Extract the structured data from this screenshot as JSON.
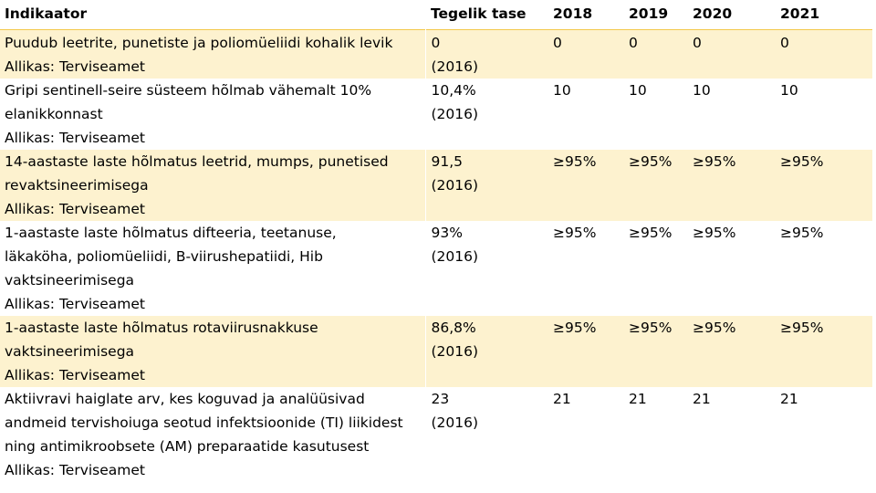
{
  "table": {
    "headers": [
      "Indikaator",
      "Tegelik tase",
      "2018",
      "2019",
      "2020",
      "2021"
    ],
    "rows": [
      {
        "indicator": "Puudub leetrite, punetiste ja poliomüeliidi kohalik levik\nAllikas: Terviseamet",
        "baseline": "0\n(2016)",
        "y2018": "0",
        "y2019": "0",
        "y2020": "0",
        "y2021": "0"
      },
      {
        "indicator": "Gripi sentinell-seire süsteem hõlmab vähemalt 10%\nelanikkonnast\nAllikas: Terviseamet",
        "baseline": "10,4%\n(2016)",
        "y2018": "10",
        "y2019": "10",
        "y2020": "10",
        "y2021": "10"
      },
      {
        "indicator": "14-aastaste laste hõlmatus leetrid, mumps, punetised\nrevaktsineerimisega\nAllikas: Terviseamet",
        "baseline": "91,5\n(2016)",
        "y2018": "≥95%",
        "y2019": "≥95%",
        "y2020": "≥95%",
        "y2021": "≥95%"
      },
      {
        "indicator": "1-aastaste laste hõlmatus difteeria, teetanuse,\nläkaköha, poliomüeliidi, B-viirushepatiidi, Hib\nvaktsineerimisega\nAllikas: Terviseamet",
        "baseline": "93%\n(2016)",
        "y2018": "≥95%",
        "y2019": "≥95%",
        "y2020": "≥95%",
        "y2021": "≥95%"
      },
      {
        "indicator": "1-aastaste laste hõlmatus rotaviirusnakkuse\nvaktsineerimisega\nAllikas: Terviseamet",
        "baseline": "86,8%\n(2016)",
        "y2018": "≥95%",
        "y2019": "≥95%",
        "y2020": "≥95%",
        "y2021": "≥95%"
      },
      {
        "indicator": "Aktiivravi haiglate arv, kes koguvad ja analüüsivad\nandmeid tervishoiuga seotud infektsioonide (TI) liikidest\nning antimikroobsete (AM) preparaatide kasutusest\nAllikas: Terviseamet",
        "baseline": "23\n(2016)",
        "y2018": "21",
        "y2019": "21",
        "y2020": "21",
        "y2021": "21"
      }
    ]
  }
}
